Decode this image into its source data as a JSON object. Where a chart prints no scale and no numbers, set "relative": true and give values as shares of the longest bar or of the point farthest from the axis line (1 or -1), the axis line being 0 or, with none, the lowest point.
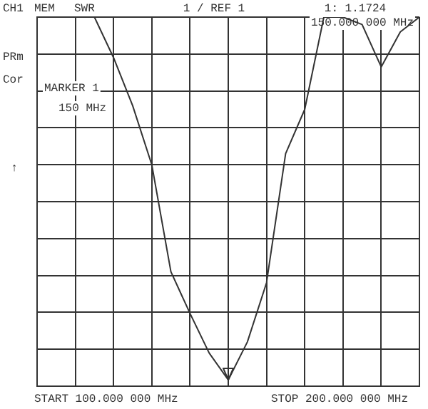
{
  "chart_data": {
    "type": "line",
    "relative": true,
    "categories": [
      null,
      null,
      null,
      null,
      null,
      null,
      null,
      null,
      null,
      null,
      null,
      null,
      null,
      null,
      null,
      null,
      null,
      null,
      null,
      null,
      null
    ],
    "series": [
      {
        "color": "#333333",
        "values": [
          1,
          1,
          1,
          1,
          0.89,
          0.76,
          0.6,
          0.31,
          0.197,
          0.09,
          0.017,
          0.12,
          0.28,
          0.63,
          0.75,
          1,
          1,
          0.98,
          0.865,
          0.96,
          1
        ]
      }
    ],
    "tick_labels": false,
    "grid": true,
    "legend": false,
    "marker": "none",
    "line_style": "solid",
    "annotations": [
      "CH1",
      "MEM",
      "SWR",
      "1 / REF 1",
      "1: 1.1724",
      "150.000 000 MHz",
      "PRm",
      "Cor",
      "MARKER 1",
      "150 MHz",
      "↑",
      "START 100.000 000 MHz",
      "STOP 200.000 000 MHz"
    ]
  }
}
